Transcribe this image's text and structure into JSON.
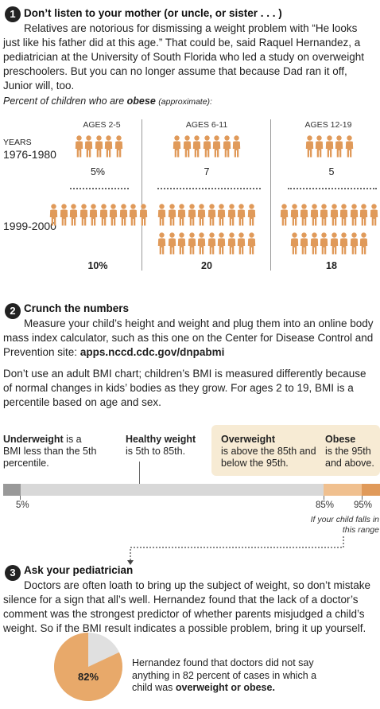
{
  "section1": {
    "number": "1",
    "heading": "Don’t listen to your mother (or uncle, or sister . . . )",
    "body": "Relatives are notorious for dismissing a weight problem with “He looks just like his father did at this age.” That could be, said Raquel Hernandez, a pediatrician at the University of South Florida who led a study on overweight preschoolers. But you can no longer assume that because Dad ran it off, Junior will, too.",
    "caption_pre": "Percent of children who are ",
    "caption_bold": "obese",
    "caption_post": "(approximate):"
  },
  "chart_data": {
    "type": "table",
    "title": "Percent of children who are obese (approximate):",
    "columns": [
      "AGES 2-5",
      "AGES 6-11",
      "AGES 12-19"
    ],
    "row_header": "YEARS",
    "rows": [
      {
        "label": "1976-1980",
        "values": [
          "5%",
          "7",
          "5"
        ],
        "icon_counts": [
          5,
          7,
          5
        ]
      },
      {
        "label": "1999-2000",
        "values": [
          "10%",
          "20",
          "18"
        ],
        "icon_counts": [
          10,
          20,
          18
        ]
      }
    ],
    "icon_color": "#E09A5A"
  },
  "section2": {
    "number": "2",
    "heading": "Crunch the numbers",
    "body_text": "Measure your child’s height and weight and plug them into an online body mass index calculator, such as this one on the Center for Disease Control and Prevention site: ",
    "link": "apps.nccd.cdc.gov/dnpabmi",
    "body2": "Don’t use an adult BMI chart; children’s BMI is measured differently because of normal changes in kids’ bodies as they grow. For ages 2 to 19, BMI is a percentile based on age and sex."
  },
  "bmi": {
    "underweight_bold": "Underweight",
    "underweight_text": " is a BMI less than the 5th percentile.",
    "healthy_bold": "Healthy weight",
    "healthy_text": " is 5th to 85th.",
    "overweight_bold": "Overweight",
    "overweight_text": "is above the 85th and below the 95th.",
    "obese_bold": "Obese",
    "obese_text": "is the 95th and above.",
    "tick_5": "5%",
    "tick_85": "85%",
    "tick_95": "95%",
    "note": "If your child falls in this range",
    "colors": {
      "under": "#999999",
      "healthy": "#D8D8D8",
      "over": "#F0C08F",
      "obese": "#E09A5A",
      "box": "#F7EBD4"
    }
  },
  "section3": {
    "number": "3",
    "heading": "Ask your pediatrician",
    "body": "Doctors are often loath to bring up the subject of weight, so don’t mistake silence for a sign that all’s well. Hernandez found that the lack of a doctor’s comment was the strongest predictor of whether parents misjudged a child’s weight. So if the BMI result indicates a possible problem, bring it up yourself.",
    "pie_label": "82%",
    "pie_value": 82,
    "pie_text": "Hernandez found that doctors did not say anything in 82 percent of cases in which a child was ",
    "pie_text_bold": "overweight or obese."
  }
}
